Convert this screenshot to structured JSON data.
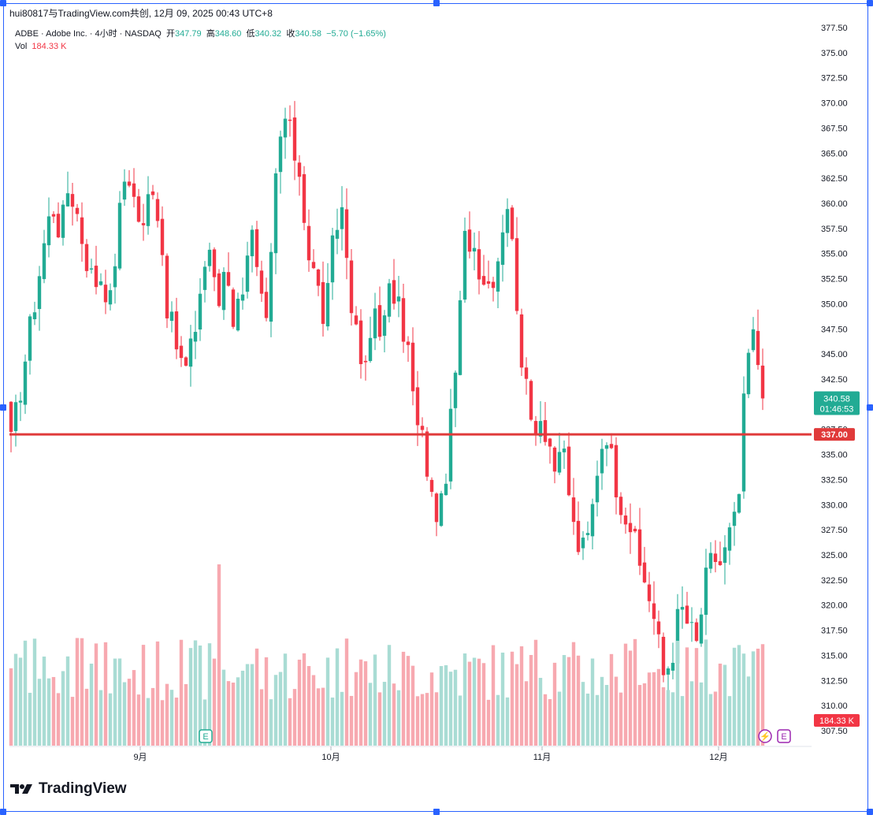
{
  "watermark": "hui80817与TradingView.com共创, 12月 09, 2025 00:43 UTC+8",
  "legend": {
    "symbol": "ADBE · Adobe Inc. · 4小时 · NASDAQ",
    "open_label": "开",
    "open": "347.79",
    "high_label": "高",
    "high": "348.60",
    "low_label": "低",
    "low": "340.32",
    "close_label": "收",
    "close": "340.58",
    "change": "−5.70 (−1.65%)",
    "vol_label": "Vol",
    "vol_value": "184.33 K"
  },
  "price_tag": {
    "price": "340.58",
    "countdown": "01:46:53"
  },
  "line_tag": "337.00",
  "vol_tag": "184.33 K",
  "event_labels": {
    "earnings": "E",
    "dividend": "⚡"
  },
  "brand": "TradingView",
  "colors": {
    "up": "#22ab94",
    "down": "#f23645",
    "up_vol": "#a9dcd4",
    "down_vol": "#f7a9b0",
    "hline": "#e03a3a"
  },
  "chart_data": {
    "type": "candlestick",
    "title": "ADBE · Adobe Inc. · 4小时 · NASDAQ",
    "y_axis_ticks": [
      "377.50",
      "375.00",
      "372.50",
      "370.00",
      "367.50",
      "365.00",
      "362.50",
      "360.00",
      "357.50",
      "355.00",
      "352.50",
      "350.00",
      "347.50",
      "345.00",
      "342.50",
      "340.00",
      "337.50",
      "335.00",
      "332.50",
      "330.00",
      "327.50",
      "325.00",
      "322.50",
      "320.00",
      "317.50",
      "315.00",
      "312.50",
      "310.00",
      "307.50"
    ],
    "ylim": [
      307.5,
      377.5
    ],
    "x_axis_ticks": [
      "9月",
      "10月",
      "11月",
      "12月"
    ],
    "horizontal_line": 337.0,
    "last_price": 340.58,
    "anchors": [
      336,
      341,
      346,
      351,
      356,
      360,
      357,
      362,
      359,
      355,
      352,
      353,
      350,
      358,
      364,
      360,
      357,
      363,
      358,
      349,
      346,
      343,
      346,
      352,
      356,
      349,
      355,
      348,
      352,
      358,
      351,
      347,
      362,
      369,
      366,
      363,
      355,
      352,
      348,
      356,
      360,
      352,
      345,
      343,
      350,
      347,
      352,
      349,
      346,
      338,
      336,
      330,
      329,
      336,
      345,
      357,
      356,
      353,
      352,
      355,
      361,
      353,
      343,
      338,
      339,
      337,
      333,
      335,
      328,
      325,
      327,
      334,
      338,
      333,
      330,
      328,
      324,
      322,
      318,
      313,
      315,
      320,
      318,
      316,
      322,
      325,
      324,
      327,
      329,
      344,
      347,
      340.58
    ],
    "volume_units": "K",
    "volume_note": "relative volume bars, peak near 9月 earnings"
  }
}
